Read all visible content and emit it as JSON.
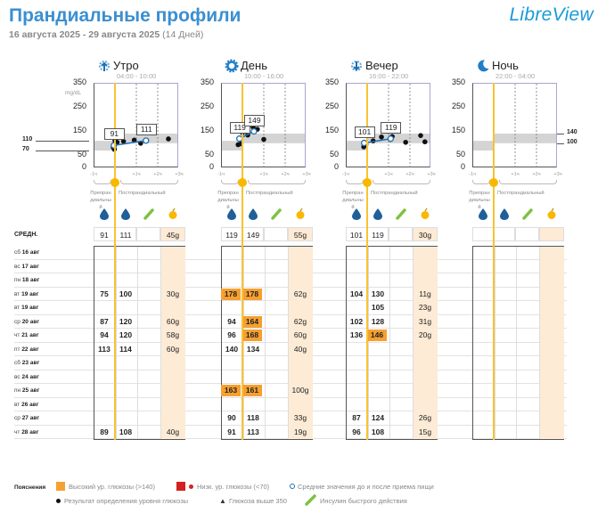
{
  "header": {
    "title": "Прандиальные профили",
    "date_range": "16 августа 2025 - 29 августа 2025",
    "days": "(14 Дней)",
    "logo": "LibreView"
  },
  "avg_label": "СРЕДН.",
  "axis": {
    "unit": "mg/dL",
    "yticks": [
      "350",
      "250",
      "150",
      "50",
      "0"
    ],
    "xticks": [
      "-1ч",
      "+1ч",
      "+2ч",
      "+3ч"
    ],
    "pre_label": "Препран диальны й",
    "post_label": "Постпрандиальный",
    "target_pre": [
      "110",
      "70"
    ],
    "target_post": [
      "140",
      "100"
    ]
  },
  "rows": [
    {
      "wd": "сб",
      "d": "16 авг"
    },
    {
      "wd": "вс",
      "d": "17 авг"
    },
    {
      "wd": "пн",
      "d": "18 авг"
    },
    {
      "wd": "вт",
      "d": "19 авг"
    },
    {
      "wd": "вт",
      "d": "19 авг"
    },
    {
      "wd": "ср",
      "d": "20 авг"
    },
    {
      "wd": "чт",
      "d": "21 авг"
    },
    {
      "wd": "пт",
      "d": "22 авг"
    },
    {
      "wd": "сб",
      "d": "23 авг"
    },
    {
      "wd": "вс",
      "d": "24 авг"
    },
    {
      "wd": "пн",
      "d": "25 авг"
    },
    {
      "wd": "вт",
      "d": "26 авг"
    },
    {
      "wd": "ср",
      "d": "27 авг"
    },
    {
      "wd": "чт",
      "d": "28 авг"
    }
  ],
  "colors": {
    "high": "#f5a030",
    "low": "#d42020",
    "meal": "#f9c232",
    "band": "#d4d4d4",
    "avg_line": "#1f6fb2",
    "carb_bg": "#fdebd6"
  },
  "panels": [
    {
      "key": "morning",
      "title": "Утро",
      "time": "04:00 - 10:00",
      "icon": "sunrise-icon",
      "avg": [
        "91",
        "111",
        "",
        "45g"
      ],
      "points": [
        [
          -0.06,
          91
        ],
        [
          0,
          110
        ],
        [
          0.1,
          104
        ],
        [
          0.4,
          108
        ],
        [
          0.9,
          113
        ],
        [
          1.2,
          100
        ],
        [
          2.5,
          118
        ],
        [
          -0.03,
          75
        ],
        [
          -0.08,
          83
        ]
      ],
      "avg_pre": {
        "h": -0.05,
        "v": 91,
        "label": "91"
      },
      "avg_post": {
        "h": 1.45,
        "v": 111,
        "label": "111"
      },
      "cells": {
        "3": [
          "75",
          "100",
          "",
          "30g"
        ],
        "5": [
          "87",
          "120",
          "",
          "60g"
        ],
        "6": [
          "94",
          "120",
          "",
          "58g"
        ],
        "7": [
          "113",
          "114",
          "",
          "60g"
        ],
        "13": [
          "89",
          "108",
          "",
          "40g"
        ]
      }
    },
    {
      "key": "day",
      "title": "День",
      "time": "10:00 - 16:00",
      "icon": "sun-icon",
      "avg": [
        "119",
        "149",
        "",
        "55g"
      ],
      "points": [
        [
          -0.2,
          94
        ],
        [
          -0.07,
          98
        ],
        [
          0,
          143
        ],
        [
          0.5,
          167
        ],
        [
          0.7,
          158
        ],
        [
          1.0,
          116
        ],
        [
          0.25,
          134
        ]
      ],
      "avg_pre": {
        "h": -0.14,
        "v": 119,
        "label": "119"
      },
      "avg_post": {
        "h": 0.54,
        "v": 149,
        "label": "149"
      },
      "cells": {
        "3": [
          "178",
          "178",
          "",
          "62g"
        ],
        "5": [
          "94",
          "164",
          "",
          "62g"
        ],
        "6": [
          "96",
          "168",
          "",
          "60g"
        ],
        "7": [
          "140",
          "134",
          "",
          "40g"
        ],
        "10": [
          "163",
          "161",
          "",
          "100g"
        ],
        "12": [
          "90",
          "118",
          "",
          "33g"
        ],
        "13": [
          "91",
          "113",
          "",
          "19g"
        ]
      }
    },
    {
      "key": "evening",
      "title": "Вечер",
      "time": "16:00 - 22:00",
      "icon": "sunset-icon",
      "avg": [
        "101",
        "119",
        "",
        "30g"
      ],
      "points": [
        [
          -0.14,
          104
        ],
        [
          -0.16,
          85
        ],
        [
          -0.06,
          95
        ],
        [
          0.28,
          110
        ],
        [
          0.67,
          126
        ],
        [
          1.17,
          128
        ],
        [
          1.8,
          104
        ],
        [
          2.5,
          132
        ],
        [
          2.7,
          106
        ],
        [
          1.1,
          116
        ]
      ],
      "avg_pre": {
        "h": -0.14,
        "v": 101,
        "label": "101"
      },
      "avg_post": {
        "h": 1.1,
        "v": 119,
        "label": "119"
      },
      "cells": {
        "3": [
          "104",
          "130",
          "",
          "11g"
        ],
        "4": [
          "",
          "105",
          "",
          "23g"
        ],
        "5": [
          "102",
          "128",
          "",
          "31g"
        ],
        "6": [
          "136",
          "146",
          "",
          "20g"
        ],
        "12": [
          "87",
          "124",
          "",
          "26g"
        ],
        "13": [
          "96",
          "108",
          "",
          "15g"
        ]
      }
    },
    {
      "key": "night",
      "title": "Ночь",
      "time": "22:00 - 04:00",
      "icon": "moon-icon",
      "avg": [
        "",
        "",
        "",
        ""
      ],
      "points": [],
      "cells": {}
    }
  ],
  "legend": {
    "title": "Пояснения",
    "high": "Высокий ур. глюкозы (>140)",
    "low": "Низк. ур. глюкозы (<70)",
    "avg": "Средние значения до и после приема пищи",
    "reading": "Результат определения уровня глюкозы",
    "above": "Глюкоза выше 350",
    "insulin": "Инсулин быстрого действия"
  }
}
